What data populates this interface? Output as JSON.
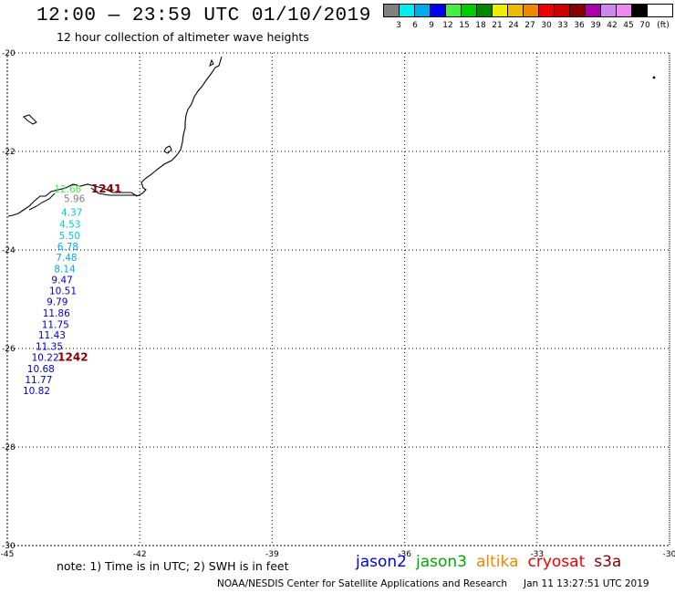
{
  "header": {
    "title": "12:00 — 23:59 UTC 01/10/2019",
    "subtitle": "12 hour collection of altimeter wave heights"
  },
  "color_scale": {
    "unit": "(ft)",
    "colors": [
      "#808080",
      "#00eeee",
      "#00aaee",
      "#0000ee",
      "#44ee44",
      "#00cc00",
      "#008800",
      "#eeee00",
      "#eebb00",
      "#ee8800",
      "#ee0000",
      "#cc0000",
      "#880000",
      "#aa00aa",
      "#cc88ee",
      "#ee88ee",
      "#000000"
    ],
    "labels": [
      "3",
      "6",
      "9",
      "12",
      "15",
      "18",
      "21",
      "24",
      "27",
      "30",
      "33",
      "36",
      "39",
      "42",
      "45",
      "70"
    ]
  },
  "map": {
    "lon_range": [
      -45,
      -30
    ],
    "lat_range": [
      -30,
      -20
    ],
    "x_ticks": [
      {
        "value": -45,
        "label": "-45"
      },
      {
        "value": -42,
        "label": "-42"
      },
      {
        "value": -39,
        "label": "-39"
      },
      {
        "value": -36,
        "label": "-36"
      },
      {
        "value": -33,
        "label": "-33"
      },
      {
        "value": -30,
        "label": "-30"
      }
    ],
    "y_ticks": [
      {
        "value": -20,
        "label": "-20"
      },
      {
        "value": -22,
        "label": "-22"
      },
      {
        "value": -24,
        "label": "-24"
      },
      {
        "value": -26,
        "label": "-26"
      },
      {
        "value": -28,
        "label": "-28"
      },
      {
        "value": -30,
        "label": "-30"
      }
    ],
    "grid": "dotted"
  },
  "observations": [
    {
      "lon": -43.94,
      "lat": -22.83,
      "text": "12.66",
      "color": "#44ee44"
    },
    {
      "lon": -43.72,
      "lat": -23.03,
      "text": "5.96",
      "color": "#808080"
    },
    {
      "lon": -43.78,
      "lat": -23.31,
      "text": "4.37",
      "color": "#00cccc"
    },
    {
      "lon": -43.82,
      "lat": -23.55,
      "text": "4.53",
      "color": "#00cccc"
    },
    {
      "lon": -43.83,
      "lat": -23.78,
      "text": "5.50",
      "color": "#00cccc"
    },
    {
      "lon": -43.87,
      "lat": -24.0,
      "text": "6.78",
      "color": "#00aaee"
    },
    {
      "lon": -43.9,
      "lat": -24.22,
      "text": "7.48",
      "color": "#00aaee"
    },
    {
      "lon": -43.94,
      "lat": -24.45,
      "text": "8.14",
      "color": "#00aaee"
    },
    {
      "lon": -44.0,
      "lat": -24.68,
      "text": "9.47",
      "color": "#0000cc"
    },
    {
      "lon": -44.05,
      "lat": -24.9,
      "text": "10.51",
      "color": "#0000cc"
    },
    {
      "lon": -44.11,
      "lat": -25.12,
      "text": "9.79",
      "color": "#0000cc"
    },
    {
      "lon": -44.2,
      "lat": -25.35,
      "text": "11.86",
      "color": "#0000cc"
    },
    {
      "lon": -44.22,
      "lat": -25.58,
      "text": "11.75",
      "color": "#0000cc"
    },
    {
      "lon": -44.3,
      "lat": -25.8,
      "text": "11.43",
      "color": "#0000cc"
    },
    {
      "lon": -44.36,
      "lat": -26.03,
      "text": "11.35",
      "color": "#0000cc"
    },
    {
      "lon": -44.45,
      "lat": -26.25,
      "text": "10.22",
      "color": "#0000cc"
    },
    {
      "lon": -44.55,
      "lat": -26.48,
      "text": "10.68",
      "color": "#0000cc"
    },
    {
      "lon": -44.6,
      "lat": -26.7,
      "text": "11.77",
      "color": "#0000cc"
    },
    {
      "lon": -44.65,
      "lat": -26.93,
      "text": "10.82",
      "color": "#0000cc"
    }
  ],
  "times": [
    {
      "lon": -43.1,
      "lat": -22.83,
      "text": "1241",
      "color": "#880000"
    },
    {
      "lon": -43.86,
      "lat": -26.25,
      "text": "1242",
      "color": "#880000"
    }
  ],
  "footer": {
    "note": "note: 1) Time is in UTC; 2) SWH is in feet",
    "satellites": [
      {
        "name": "jason2",
        "color": "#0000ee"
      },
      {
        "name": "jason3",
        "color": "#00aa00"
      },
      {
        "name": "altika",
        "color": "#ee8800"
      },
      {
        "name": "cryosat",
        "color": "#ee0000"
      },
      {
        "name": "s3a",
        "color": "#880000"
      }
    ],
    "credit": "NOAA/NESDIS Center for Satellite Applications and Research",
    "timestamp": "Jan 11 13:27:51 UTC 2019"
  }
}
